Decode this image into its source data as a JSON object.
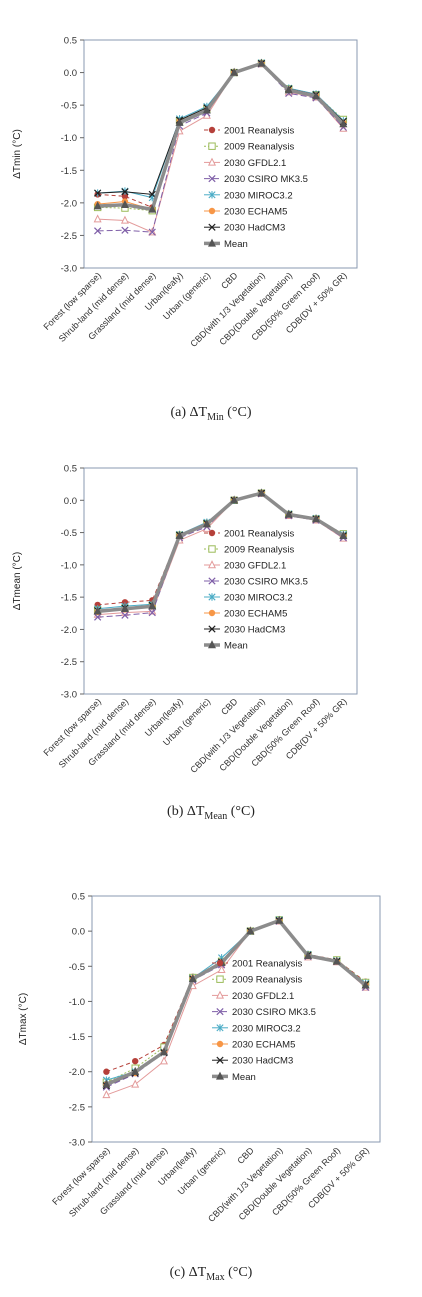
{
  "chart_data": [
    {
      "type": "line",
      "ylabel": "ΔTmin (°C)",
      "ylim": [
        -3.0,
        0.5
      ],
      "yticks": [
        "0.5",
        "0.0",
        "-0.5",
        "-1.0",
        "-1.5",
        "-2.0",
        "-2.5",
        "-3.0"
      ],
      "categories": [
        "Forest (low sparse)",
        "Shrub-land (mid dense)",
        "Grassland (mid dense)",
        "Urban(leafy)",
        "Urban (generic)",
        "CBD",
        "CBD(with 1/3 Vegetation)",
        "CBD(Double Vegetation)",
        "CBD(50% Green Roof)",
        "CDB(DV + 50% GR)"
      ],
      "grid": false,
      "legend_position": "right",
      "series": [
        {
          "name": "2001 Reanalysis",
          "values": [
            -1.87,
            -1.9,
            -2.07,
            -0.76,
            -0.58,
            0.0,
            0.14,
            -0.26,
            -0.36,
            -0.78
          ]
        },
        {
          "name": "2009 Reanalysis",
          "values": [
            -2.07,
            -2.08,
            -2.12,
            -0.74,
            -0.56,
            0.0,
            0.14,
            -0.25,
            -0.34,
            -0.72
          ]
        },
        {
          "name": "2030 GFDL2.1",
          "values": [
            -2.25,
            -2.27,
            -2.45,
            -0.9,
            -0.66,
            0.0,
            0.13,
            -0.3,
            -0.38,
            -0.86
          ]
        },
        {
          "name": "2030 CSIRO MK3.5",
          "values": [
            -2.43,
            -2.42,
            -2.45,
            -0.82,
            -0.62,
            0.0,
            0.13,
            -0.32,
            -0.39,
            -0.84
          ]
        },
        {
          "name": "2030 MIROC3.2",
          "values": [
            -1.85,
            -1.82,
            -1.92,
            -0.71,
            -0.52,
            0.0,
            0.15,
            -0.24,
            -0.33,
            -0.74
          ]
        },
        {
          "name": "2030 ECHAM5",
          "values": [
            -2.02,
            -1.98,
            -2.1,
            -0.75,
            -0.57,
            0.0,
            0.14,
            -0.26,
            -0.35,
            -0.77
          ]
        },
        {
          "name": "2030 HadCM3",
          "values": [
            -1.85,
            -1.83,
            -1.87,
            -0.73,
            -0.54,
            0.0,
            0.14,
            -0.25,
            -0.34,
            -0.75
          ]
        },
        {
          "name": "Mean",
          "values": [
            -2.05,
            -2.03,
            -2.1,
            -0.77,
            -0.58,
            0.0,
            0.14,
            -0.27,
            -0.36,
            -0.79
          ]
        }
      ]
    },
    {
      "type": "line",
      "ylabel": "ΔTmean (°C)",
      "ylim": [
        -3.0,
        0.5
      ],
      "yticks": [
        "0.5",
        "0.0",
        "-0.5",
        "-1.0",
        "-1.5",
        "-2.0",
        "-2.5",
        "-3.0"
      ],
      "categories": [
        "Forest (low sparse)",
        "Shrub-land (mid dense)",
        "Grassland (mid dense)",
        "Urban(leafy)",
        "Urban (generic)",
        "CBD",
        "CBD(with 1/3 Vegetation)",
        "CBD(Double Vegetation)",
        "CBD(50% Green Roof)",
        "CDB(DV + 50% GR)"
      ],
      "grid": false,
      "legend_position": "right",
      "series": [
        {
          "name": "2001 Reanalysis",
          "values": [
            -1.62,
            -1.58,
            -1.55,
            -0.53,
            -0.35,
            0.0,
            0.11,
            -0.22,
            -0.29,
            -0.55
          ]
        },
        {
          "name": "2009 Reanalysis",
          "values": [
            -1.7,
            -1.67,
            -1.63,
            -0.54,
            -0.36,
            0.0,
            0.11,
            -0.22,
            -0.29,
            -0.52
          ]
        },
        {
          "name": "2030 GFDL2.1",
          "values": [
            -1.77,
            -1.74,
            -1.72,
            -0.62,
            -0.44,
            0.0,
            0.1,
            -0.24,
            -0.31,
            -0.59
          ]
        },
        {
          "name": "2030 CSIRO MK3.5",
          "values": [
            -1.81,
            -1.78,
            -1.74,
            -0.58,
            -0.41,
            0.0,
            0.1,
            -0.24,
            -0.31,
            -0.58
          ]
        },
        {
          "name": "2030 MIROC3.2",
          "values": [
            -1.68,
            -1.64,
            -1.61,
            -0.53,
            -0.34,
            0.0,
            0.11,
            -0.21,
            -0.28,
            -0.53
          ]
        },
        {
          "name": "2030 ECHAM5",
          "values": [
            -1.73,
            -1.69,
            -1.64,
            -0.55,
            -0.37,
            0.0,
            0.11,
            -0.22,
            -0.29,
            -0.55
          ]
        },
        {
          "name": "2030 HadCM3",
          "values": [
            -1.71,
            -1.67,
            -1.63,
            -0.54,
            -0.36,
            0.0,
            0.11,
            -0.22,
            -0.29,
            -0.55
          ]
        },
        {
          "name": "Mean",
          "values": [
            -1.72,
            -1.68,
            -1.64,
            -0.55,
            -0.37,
            0.0,
            0.11,
            -0.22,
            -0.29,
            -0.55
          ]
        }
      ]
    },
    {
      "type": "line",
      "ylabel": "ΔTmax (°C)",
      "ylim": [
        -3.0,
        0.5
      ],
      "yticks": [
        "0.5",
        "0.0",
        "-0.5",
        "-1.0",
        "-1.5",
        "-2.0",
        "-2.5",
        "-3.0"
      ],
      "categories": [
        "Forest (low sparse)",
        "Shrub-land (mid dense)",
        "Grassland (mid dense)",
        "Urban(leafy)",
        "Urban (generic)",
        "CBD",
        "CBD(with 1/3 Vegetation)",
        "CBD(Double Vegetation)",
        "CBD(50% Green Roof)",
        "CDB(DV + 50% GR)"
      ],
      "grid": false,
      "legend_position": "right",
      "series": [
        {
          "name": "2001 Reanalysis",
          "values": [
            -2.0,
            -1.85,
            -1.62,
            -0.65,
            -0.45,
            0.0,
            0.16,
            -0.33,
            -0.41,
            -0.72
          ]
        },
        {
          "name": "2009 Reanalysis",
          "values": [
            -2.15,
            -1.95,
            -1.65,
            -0.66,
            -0.43,
            0.0,
            0.16,
            -0.34,
            -0.41,
            -0.73
          ]
        },
        {
          "name": "2030 GFDL2.1",
          "values": [
            -2.33,
            -2.18,
            -1.85,
            -0.78,
            -0.55,
            0.0,
            0.14,
            -0.37,
            -0.44,
            -0.8
          ]
        },
        {
          "name": "2030 CSIRO MK3.5",
          "values": [
            -2.22,
            -2.03,
            -1.73,
            -0.7,
            -0.48,
            0.0,
            0.14,
            -0.36,
            -0.43,
            -0.8
          ]
        },
        {
          "name": "2030 MIROC3.2",
          "values": [
            -2.12,
            -2.0,
            -1.72,
            -0.67,
            -0.38,
            0.0,
            0.16,
            -0.33,
            -0.42,
            -0.74
          ]
        },
        {
          "name": "2030 ECHAM5",
          "values": [
            -2.18,
            -2.02,
            -1.72,
            -0.67,
            -0.44,
            0.0,
            0.15,
            -0.35,
            -0.43,
            -0.76
          ]
        },
        {
          "name": "2030 HadCM3",
          "values": [
            -2.2,
            -2.02,
            -1.73,
            -0.68,
            -0.44,
            0.0,
            0.15,
            -0.34,
            -0.43,
            -0.76
          ]
        },
        {
          "name": "Mean",
          "values": [
            -2.18,
            -2.0,
            -1.72,
            -0.68,
            -0.45,
            0.0,
            0.15,
            -0.35,
            -0.43,
            -0.77
          ]
        }
      ]
    }
  ],
  "captions": [
    {
      "prefix": "(a) ΔT",
      "sub": "Min",
      "suffix": " (°C)"
    },
    {
      "prefix": "(b) ΔT",
      "sub": "Mean",
      "suffix": " (°C)"
    },
    {
      "prefix": "(c) ΔT",
      "sub": "Max",
      "suffix": " (°C)"
    }
  ],
  "series_style": [
    {
      "color": "#b5403a",
      "marker": "circle",
      "dash": "4,3"
    },
    {
      "color": "#9bbb59",
      "marker": "square-open",
      "dash": "2,2"
    },
    {
      "color": "#e39a9a",
      "marker": "triangle-open",
      "dash": ""
    },
    {
      "color": "#7f5fa8",
      "marker": "x",
      "dash": "6,3"
    },
    {
      "color": "#4bacc6",
      "marker": "star",
      "dash": ""
    },
    {
      "color": "#f79646",
      "marker": "circle",
      "dash": ""
    },
    {
      "color": "#1f1f1f",
      "marker": "x",
      "dash": ""
    },
    {
      "color": "#8c8c8c",
      "marker": "triangle",
      "dash": "",
      "width": 3.5
    }
  ]
}
